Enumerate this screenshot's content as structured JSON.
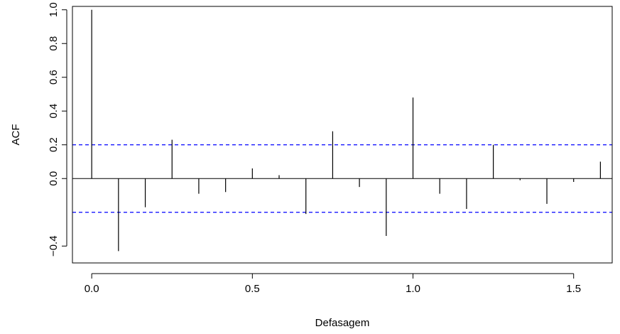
{
  "chart_data": {
    "type": "bar",
    "title": "",
    "xlabel": "Defasagem",
    "ylabel": "ACF",
    "xlim": [
      -0.06,
      1.62
    ],
    "ylim": [
      -0.5,
      1.02
    ],
    "x_ticks": [
      {
        "value": 0.0,
        "label": "0.0"
      },
      {
        "value": 0.5,
        "label": "0.5"
      },
      {
        "value": 1.0,
        "label": "1.0"
      },
      {
        "value": 1.5,
        "label": "1.5"
      }
    ],
    "y_ticks": [
      {
        "value": -0.4,
        "label": "−0.4"
      },
      {
        "value": 0.0,
        "label": "0.0"
      },
      {
        "value": 0.2,
        "label": "0.2"
      },
      {
        "value": 0.4,
        "label": "0.4"
      },
      {
        "value": 0.6,
        "label": "0.6"
      },
      {
        "value": 0.8,
        "label": "0.8"
      },
      {
        "value": 1.0,
        "label": "1.0"
      }
    ],
    "confidence_bounds": [
      0.2,
      -0.2
    ],
    "confidence_color": "#0000ff",
    "grid": false,
    "lags": [
      0,
      0.0833,
      0.1667,
      0.25,
      0.3333,
      0.4167,
      0.5,
      0.5833,
      0.6667,
      0.75,
      0.8333,
      0.9167,
      1.0,
      1.0833,
      1.1667,
      1.25,
      1.3333,
      1.4167,
      1.5,
      1.5833
    ],
    "values": [
      1.0,
      -0.43,
      -0.17,
      0.23,
      -0.09,
      -0.08,
      0.06,
      0.02,
      -0.21,
      0.28,
      -0.05,
      -0.34,
      0.48,
      -0.09,
      -0.18,
      0.2,
      -0.01,
      -0.15,
      -0.02,
      0.1
    ]
  }
}
